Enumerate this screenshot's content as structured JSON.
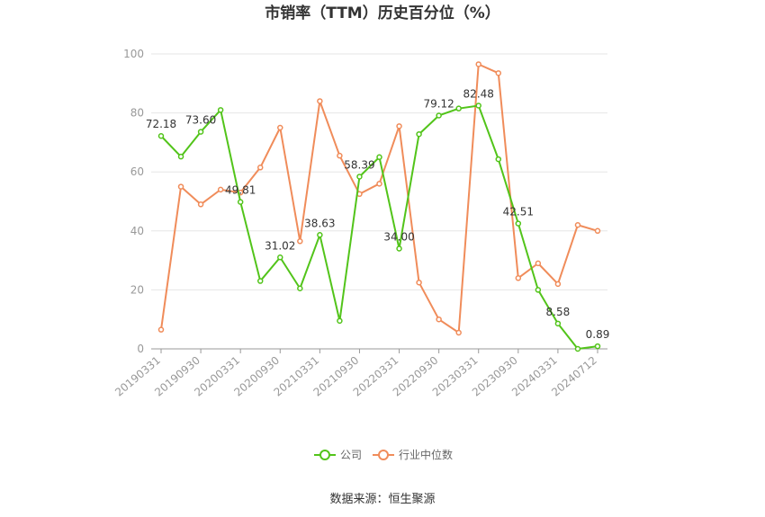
{
  "chart_data": {
    "type": "line",
    "title": "市销率（TTM）历史百分位（%）",
    "xlabel": "",
    "ylabel": "",
    "ylim": [
      0,
      100
    ],
    "yticks": [
      0,
      20,
      40,
      60,
      80,
      100
    ],
    "grid": true,
    "legend_position": "bottom",
    "x": [
      "20190331",
      "20190630",
      "20190930",
      "20191231",
      "20200331",
      "20200630",
      "20200930",
      "20201231",
      "20210331",
      "20210630",
      "20210930",
      "20211231",
      "20220331",
      "20220630",
      "20220930",
      "20221231",
      "20230331",
      "20230630",
      "20230930",
      "20231231",
      "20240331",
      "20240630",
      "20240712"
    ],
    "xtick_labels": [
      "20190331",
      "20190930",
      "20200331",
      "20200930",
      "20210331",
      "20210930",
      "20220331",
      "20220930",
      "20230331",
      "20230930",
      "20240331",
      "20240712"
    ],
    "series": [
      {
        "name": "公司",
        "color": "#52c41a",
        "values": [
          72.18,
          65.2,
          73.6,
          81.0,
          49.81,
          23.0,
          31.02,
          20.5,
          38.63,
          9.5,
          58.39,
          65.0,
          34.0,
          72.8,
          79.12,
          81.5,
          82.48,
          64.3,
          42.51,
          20.0,
          8.58,
          0.0,
          0.89
        ],
        "data_labels": [
          {
            "index": 0,
            "text": "72.18"
          },
          {
            "index": 2,
            "text": "73.60"
          },
          {
            "index": 4,
            "text": "49.81"
          },
          {
            "index": 6,
            "text": "31.02"
          },
          {
            "index": 8,
            "text": "38.63"
          },
          {
            "index": 10,
            "text": "58.39"
          },
          {
            "index": 12,
            "text": "34.00"
          },
          {
            "index": 14,
            "text": "79.12"
          },
          {
            "index": 16,
            "text": "82.48"
          },
          {
            "index": 18,
            "text": "42.51"
          },
          {
            "index": 20,
            "text": "8.58"
          },
          {
            "index": 22,
            "text": "0.89"
          }
        ]
      },
      {
        "name": "行业中位数",
        "color": "#f08c5a",
        "values": [
          6.5,
          55.0,
          49.0,
          54.0,
          53.0,
          61.5,
          75.0,
          36.5,
          84.0,
          65.5,
          52.5,
          56.0,
          75.5,
          22.5,
          10.0,
          5.5,
          96.5,
          93.5,
          24.0,
          29.0,
          22.0,
          42.0,
          40.0
        ]
      }
    ]
  },
  "source": "数据来源：恒生聚源"
}
